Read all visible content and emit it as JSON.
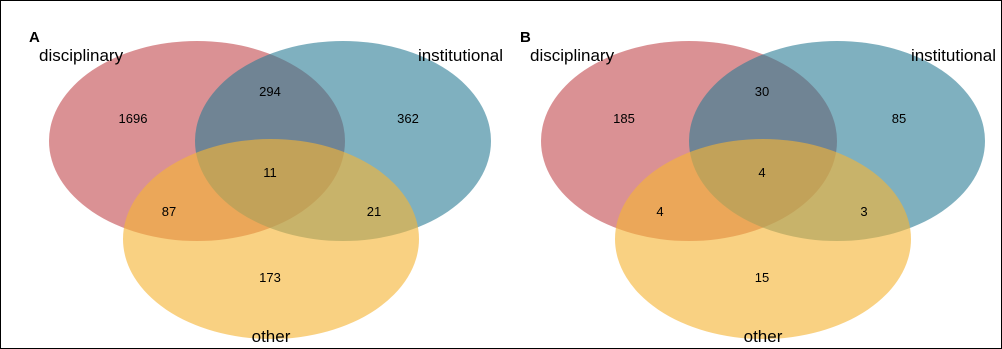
{
  "panels": [
    {
      "letter": "A",
      "sets": {
        "disciplinary": "disciplinary",
        "institutional": "institutional",
        "other": "other"
      },
      "counts": {
        "disciplinary_only": "1696",
        "institutional_only": "362",
        "other_only": "173",
        "disciplinary_institutional": "294",
        "disciplinary_other": "87",
        "institutional_other": "21",
        "all_three": "11"
      }
    },
    {
      "letter": "B",
      "sets": {
        "disciplinary": "disciplinary",
        "institutional": "institutional",
        "other": "other"
      },
      "counts": {
        "disciplinary_only": "185",
        "institutional_only": "85",
        "other_only": "15",
        "disciplinary_institutional": "30",
        "disciplinary_other": "4",
        "institutional_other": "3",
        "all_three": "4"
      }
    }
  ],
  "colors": {
    "disciplinary": "#c44e52",
    "institutional": "#2a7c94",
    "other": "#f5b435"
  }
}
